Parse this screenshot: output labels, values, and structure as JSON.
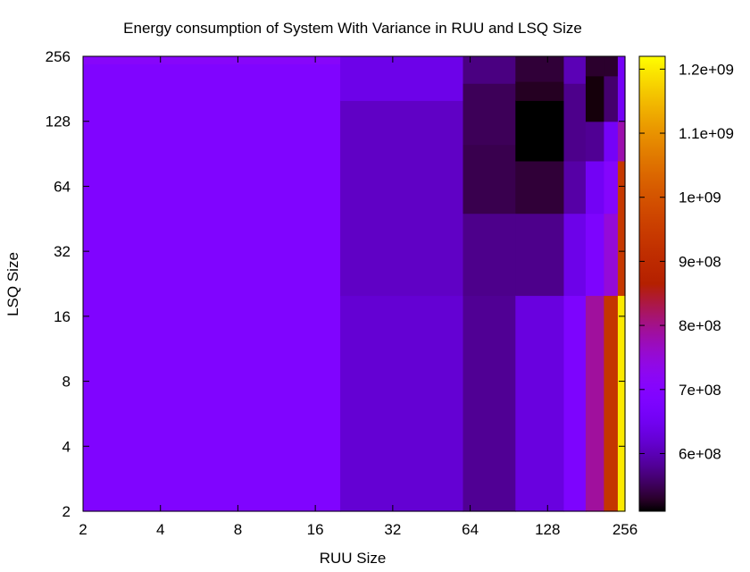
{
  "chart_data": {
    "type": "heatmap",
    "title": "Energy consumption of System With Variance in RUU and LSQ Size",
    "xlabel": "RUU Size",
    "ylabel": "LSQ Size",
    "x_scale": "log2",
    "y_scale": "log2",
    "x_ticks": [
      2,
      4,
      8,
      16,
      32,
      64,
      128,
      256
    ],
    "y_ticks": [
      2,
      4,
      8,
      16,
      32,
      64,
      128,
      256
    ],
    "x_tick_labels": [
      "2",
      "4",
      "8",
      "16",
      "32",
      "64",
      "128",
      "256"
    ],
    "y_tick_labels": [
      "2",
      "4",
      "8",
      "16",
      "32",
      "64",
      "128",
      "256"
    ],
    "colorbar": {
      "min": 510000000,
      "max": 1220000000,
      "ticks": [
        600000000,
        700000000,
        800000000,
        900000000,
        1000000000,
        1100000000,
        1200000000
      ],
      "tick_labels": [
        "6e+08",
        "7e+08",
        "8e+08",
        "9e+08",
        "1e+09",
        "1.1e+09",
        "1.2e+09"
      ]
    },
    "cells": [
      {
        "x": [
          2,
          20
        ],
        "y": [
          2,
          20
        ],
        "value": 690000000
      },
      {
        "x": [
          2,
          20
        ],
        "y": [
          20,
          236
        ],
        "value": 690000000
      },
      {
        "x": [
          2,
          20
        ],
        "y": [
          236,
          256
        ],
        "value": 710000000
      },
      {
        "x": [
          20,
          60
        ],
        "y": [
          2,
          20
        ],
        "value": 620000000
      },
      {
        "x": [
          20,
          60
        ],
        "y": [
          20,
          160
        ],
        "value": 610000000
      },
      {
        "x": [
          20,
          60
        ],
        "y": [
          160,
          256
        ],
        "value": 640000000
      },
      {
        "x": [
          60,
          96
        ],
        "y": [
          2,
          20
        ],
        "value": 580000000
      },
      {
        "x": [
          60,
          96
        ],
        "y": [
          20,
          48
        ],
        "value": 575000000
      },
      {
        "x": [
          60,
          96
        ],
        "y": [
          48,
          100
        ],
        "value": 545000000
      },
      {
        "x": [
          60,
          96
        ],
        "y": [
          100,
          192
        ],
        "value": 550000000
      },
      {
        "x": [
          60,
          96
        ],
        "y": [
          192,
          256
        ],
        "value": 570000000
      },
      {
        "x": [
          96,
          148
        ],
        "y": [
          2,
          20
        ],
        "value": 630000000
      },
      {
        "x": [
          96,
          148
        ],
        "y": [
          20,
          48
        ],
        "value": 575000000
      },
      {
        "x": [
          96,
          148
        ],
        "y": [
          48,
          84
        ],
        "value": 535000000
      },
      {
        "x": [
          96,
          148
        ],
        "y": [
          84,
          160
        ],
        "value": 510000000
      },
      {
        "x": [
          96,
          148
        ],
        "y": [
          160,
          196
        ],
        "value": 525000000
      },
      {
        "x": [
          96,
          148
        ],
        "y": [
          196,
          256
        ],
        "value": 535000000
      },
      {
        "x": [
          148,
          180
        ],
        "y": [
          2,
          20
        ],
        "value": 680000000
      },
      {
        "x": [
          148,
          180
        ],
        "y": [
          20,
          48
        ],
        "value": 640000000
      },
      {
        "x": [
          148,
          180
        ],
        "y": [
          48,
          84
        ],
        "value": 590000000
      },
      {
        "x": [
          148,
          180
        ],
        "y": [
          84,
          192
        ],
        "value": 575000000
      },
      {
        "x": [
          148,
          180
        ],
        "y": [
          192,
          256
        ],
        "value": 600000000
      },
      {
        "x": [
          180,
          212
        ],
        "y": [
          2,
          20
        ],
        "value": 790000000
      },
      {
        "x": [
          180,
          212
        ],
        "y": [
          20,
          48
        ],
        "value": 680000000
      },
      {
        "x": [
          180,
          212
        ],
        "y": [
          48,
          84
        ],
        "value": 655000000
      },
      {
        "x": [
          180,
          212
        ],
        "y": [
          84,
          128
        ],
        "value": 580000000
      },
      {
        "x": [
          180,
          212
        ],
        "y": [
          128,
          208
        ],
        "value": 515000000
      },
      {
        "x": [
          180,
          212
        ],
        "y": [
          208,
          256
        ],
        "value": 530000000
      },
      {
        "x": [
          212,
          240
        ],
        "y": [
          2,
          20
        ],
        "value": 930000000
      },
      {
        "x": [
          212,
          240
        ],
        "y": [
          20,
          48
        ],
        "value": 750000000
      },
      {
        "x": [
          212,
          240
        ],
        "y": [
          48,
          84
        ],
        "value": 700000000
      },
      {
        "x": [
          212,
          240
        ],
        "y": [
          84,
          128
        ],
        "value": 660000000
      },
      {
        "x": [
          212,
          240
        ],
        "y": [
          128,
          208
        ],
        "value": 560000000
      },
      {
        "x": [
          212,
          240
        ],
        "y": [
          208,
          256
        ],
        "value": 530000000
      },
      {
        "x": [
          240,
          256
        ],
        "y": [
          2,
          20
        ],
        "value": 1200000000
      },
      {
        "x": [
          240,
          256
        ],
        "y": [
          20,
          84
        ],
        "value": 940000000
      },
      {
        "x": [
          240,
          256
        ],
        "y": [
          84,
          128
        ],
        "value": 780000000
      },
      {
        "x": [
          240,
          256
        ],
        "y": [
          128,
          256
        ],
        "value": 660000000
      }
    ]
  }
}
